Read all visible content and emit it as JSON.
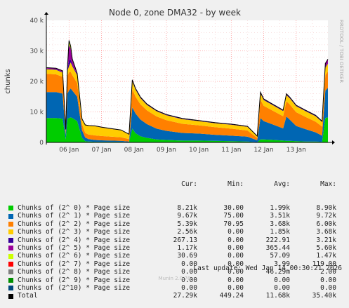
{
  "chart_data": {
    "type": "area",
    "title": "Node 0, zone DMA32 - by week",
    "ylabel": "chunks",
    "side_label": "RRDTOOL / TOBI OETIKER",
    "y_ticks": [
      "0",
      "10 k",
      "20 k",
      "30 k",
      "40 k"
    ],
    "ylim": [
      0,
      40000
    ],
    "x_ticks": [
      "06 Jan",
      "07 Jan",
      "08 Jan",
      "09 Jan",
      "10 Jan",
      "11 Jan",
      "12 Jan",
      "13 Jan"
    ],
    "xlim_days": [
      5.3,
      13.98
    ],
    "grid": true,
    "legend_placement": "bottom",
    "columns": [
      "Cur:",
      "Min:",
      "Avg:",
      "Max:"
    ],
    "series": [
      {
        "name": "Chunks of (2^ 0) * Page size",
        "color": "#00cc00",
        "cur": "8.21k",
        "min": "30.00",
        "avg": "1.99k",
        "max": "8.90k"
      },
      {
        "name": "Chunks of (2^ 1) * Page size",
        "color": "#0066b3",
        "cur": "9.67k",
        "min": "75.00",
        "avg": "3.51k",
        "max": "9.72k"
      },
      {
        "name": "Chunks of (2^ 2) * Page size",
        "color": "#ff8000",
        "cur": "5.39k",
        "min": "70.95",
        "avg": "3.68k",
        "max": "6.00k"
      },
      {
        "name": "Chunks of (2^ 3) * Page size",
        "color": "#ffcc00",
        "cur": "2.56k",
        "min": "0.00",
        "avg": "1.85k",
        "max": "3.68k"
      },
      {
        "name": "Chunks of (2^ 4) * Page size",
        "color": "#330099",
        "cur": "267.13",
        "min": "0.00",
        "avg": "222.91",
        "max": "3.21k"
      },
      {
        "name": "Chunks of (2^ 5) * Page size",
        "color": "#990099",
        "cur": "1.17k",
        "min": "0.00",
        "avg": "365.44",
        "max": "5.60k"
      },
      {
        "name": "Chunks of (2^ 6) * Page size",
        "color": "#ccff00",
        "cur": "30.69",
        "min": "0.00",
        "avg": "57.09",
        "max": "1.47k"
      },
      {
        "name": "Chunks of (2^ 7) * Page size",
        "color": "#ff0000",
        "cur": "0.00",
        "min": "0.00",
        "avg": "3.99",
        "max": "119.00"
      },
      {
        "name": "Chunks of (2^ 8) * Page size",
        "color": "#808080",
        "cur": "0.00",
        "min": "0.00",
        "avg": "46.29m",
        "max": "2.00"
      },
      {
        "name": "Chunks of (2^ 9) * Page size",
        "color": "#008f00",
        "cur": "0.00",
        "min": "0.00",
        "avg": "0.00",
        "max": "0.00"
      },
      {
        "name": "Chunks of (2^10) * Page size",
        "color": "#00487d",
        "cur": "0.00",
        "min": "0.00",
        "avg": "0.00",
        "max": "0.00"
      },
      {
        "name": "Total",
        "color": "#000000",
        "cur": "27.29k",
        "min": "449.24",
        "avg": "11.68k",
        "max": "35.40k"
      }
    ],
    "stack_points": {
      "x_days": [
        5.3,
        5.6,
        5.8,
        5.9,
        5.95,
        6.0,
        6.05,
        6.1,
        6.25,
        6.4,
        6.5,
        6.6,
        6.8,
        7.0,
        7.3,
        7.6,
        7.85,
        7.95,
        8.05,
        8.2,
        8.4,
        8.7,
        9.0,
        9.5,
        10.0,
        10.5,
        11.0,
        11.5,
        11.8,
        11.9,
        12.0,
        12.3,
        12.6,
        12.7,
        12.8,
        13.0,
        13.3,
        13.6,
        13.8,
        13.9,
        13.98
      ],
      "o0": [
        8000,
        8000,
        7800,
        1000,
        7800,
        8000,
        8200,
        8000,
        7000,
        1500,
        400,
        300,
        200,
        200,
        200,
        200,
        100,
        4500,
        3000,
        2000,
        1500,
        1000,
        800,
        600,
        600,
        500,
        400,
        300,
        100,
        1000,
        1000,
        800,
        600,
        500,
        500,
        400,
        300,
        300,
        200,
        8000,
        8210
      ],
      "o1": [
        8500,
        8500,
        8200,
        1500,
        8200,
        9000,
        9500,
        9000,
        8000,
        2500,
        1200,
        800,
        600,
        500,
        400,
        300,
        200,
        7000,
        6500,
        5500,
        4500,
        3500,
        3000,
        2500,
        2300,
        2000,
        1800,
        1600,
        600,
        7000,
        6000,
        5000,
        4000,
        8000,
        7000,
        5000,
        4000,
        3000,
        2000,
        9000,
        9670
      ],
      "o2": [
        6000,
        5800,
        5500,
        1200,
        5800,
        6000,
        5500,
        5000,
        4500,
        2000,
        1500,
        1500,
        1500,
        1400,
        1300,
        1200,
        800,
        6000,
        5500,
        5000,
        4500,
        4000,
        3500,
        3000,
        2700,
        2500,
        2300,
        2000,
        800,
        6000,
        5000,
        4500,
        4000,
        5000,
        5000,
        4500,
        4000,
        3500,
        3000,
        5000,
        5390
      ],
      "o3": [
        1500,
        1500,
        1400,
        400,
        1600,
        2000,
        3000,
        3000,
        2500,
        1500,
        2500,
        2800,
        3000,
        2800,
        2500,
        2300,
        1500,
        2500,
        2300,
        2000,
        1800,
        1700,
        1600,
        1500,
        1400,
        1300,
        1300,
        1200,
        500,
        2000,
        1900,
        1800,
        1700,
        2000,
        2000,
        2000,
        1900,
        1800,
        1500,
        2500,
        2560
      ],
      "o4": [
        200,
        200,
        200,
        50,
        300,
        2000,
        1000,
        500,
        300,
        100,
        100,
        100,
        80,
        80,
        80,
        60,
        50,
        300,
        250,
        200,
        200,
        150,
        150,
        150,
        120,
        120,
        120,
        100,
        50,
        300,
        250,
        200,
        200,
        300,
        250,
        200,
        200,
        200,
        150,
        250,
        267
      ],
      "o5": [
        300,
        300,
        400,
        100,
        600,
        5000,
        3500,
        1500,
        400,
        100,
        50,
        50,
        50,
        50,
        40,
        40,
        30,
        200,
        150,
        150,
        100,
        100,
        100,
        100,
        80,
        80,
        80,
        80,
        30,
        150,
        120,
        100,
        100,
        150,
        120,
        100,
        100,
        100,
        100,
        1100,
        1170
      ],
      "o6": [
        0,
        0,
        0,
        0,
        0,
        1400,
        900,
        300,
        0,
        0,
        0,
        0,
        0,
        0,
        0,
        0,
        0,
        0,
        0,
        0,
        0,
        0,
        0,
        0,
        0,
        0,
        0,
        0,
        0,
        0,
        0,
        0,
        0,
        0,
        0,
        0,
        0,
        0,
        0,
        30,
        31
      ]
    },
    "last_update": "Last update: Wed Jan 14 00:30:21 2026",
    "footer": "Munin 2.0.76"
  }
}
